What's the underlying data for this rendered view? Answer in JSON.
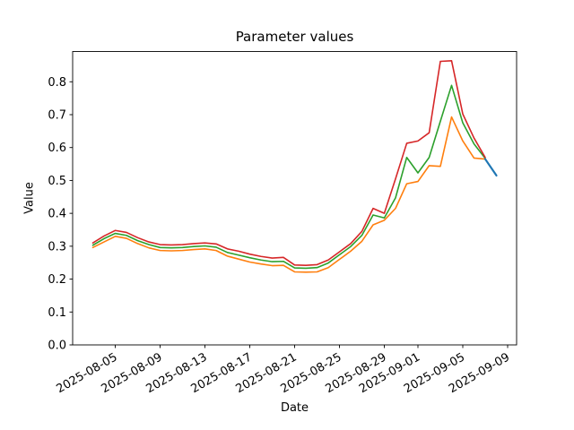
{
  "chart_data": {
    "type": "line",
    "title": "Parameter values",
    "xlabel": "Date",
    "ylabel": "Value",
    "grid": false,
    "legend": "none",
    "ylim": [
      0,
      0.892
    ],
    "y_ticks": [
      0.0,
      0.1,
      0.2,
      0.3,
      0.4,
      0.5,
      0.6,
      0.7,
      0.8
    ],
    "y_tick_labels": [
      "0.0",
      "0.1",
      "0.2",
      "0.3",
      "0.4",
      "0.5",
      "0.6",
      "0.7",
      "0.8"
    ],
    "x_tick_labels": [
      "2025-08-05",
      "2025-08-09",
      "2025-08-13",
      "2025-08-17",
      "2025-08-21",
      "2025-08-25",
      "2025-08-29",
      "2025-09-01",
      "2025-09-05",
      "2025-09-09"
    ],
    "x_tick_rotation_deg": 30,
    "x_range": {
      "start": "2025-08-03",
      "end": "2025-09-08",
      "margin_days": 1.8
    },
    "dates": [
      "2025-08-03",
      "2025-08-04",
      "2025-08-05",
      "2025-08-06",
      "2025-08-07",
      "2025-08-08",
      "2025-08-09",
      "2025-08-10",
      "2025-08-11",
      "2025-08-12",
      "2025-08-13",
      "2025-08-14",
      "2025-08-15",
      "2025-08-16",
      "2025-08-17",
      "2025-08-18",
      "2025-08-19",
      "2025-08-20",
      "2025-08-21",
      "2025-08-22",
      "2025-08-23",
      "2025-08-24",
      "2025-08-25",
      "2025-08-26",
      "2025-08-27",
      "2025-08-28",
      "2025-08-29",
      "2025-08-30",
      "2025-08-31",
      "2025-09-01",
      "2025-09-02",
      "2025-09-03",
      "2025-09-04",
      "2025-09-05",
      "2025-09-06",
      "2025-09-07"
    ],
    "series": [
      {
        "name": "orange",
        "color": "#ff7f0e",
        "width": 1.6,
        "values": [
          0.296,
          0.313,
          0.33,
          0.324,
          0.308,
          0.295,
          0.287,
          0.286,
          0.287,
          0.29,
          0.292,
          0.287,
          0.27,
          0.261,
          0.252,
          0.246,
          0.241,
          0.242,
          0.222,
          0.221,
          0.222,
          0.235,
          0.26,
          0.285,
          0.315,
          0.365,
          0.379,
          0.415,
          0.49,
          0.497,
          0.545,
          0.543,
          0.693,
          0.62,
          0.568,
          0.565
        ]
      },
      {
        "name": "green",
        "color": "#2ca02c",
        "width": 1.6,
        "values": [
          0.303,
          0.323,
          0.339,
          0.333,
          0.317,
          0.305,
          0.296,
          0.295,
          0.296,
          0.299,
          0.301,
          0.297,
          0.281,
          0.273,
          0.265,
          0.258,
          0.253,
          0.254,
          0.234,
          0.233,
          0.235,
          0.249,
          0.274,
          0.299,
          0.333,
          0.395,
          0.386,
          0.447,
          0.57,
          0.523,
          0.57,
          0.68,
          0.789,
          0.675,
          0.611,
          0.567
        ]
      },
      {
        "name": "red",
        "color": "#d62728",
        "width": 1.6,
        "values": [
          0.31,
          0.331,
          0.348,
          0.342,
          0.326,
          0.313,
          0.305,
          0.304,
          0.305,
          0.308,
          0.31,
          0.307,
          0.292,
          0.285,
          0.276,
          0.269,
          0.264,
          0.266,
          0.243,
          0.242,
          0.244,
          0.258,
          0.283,
          0.308,
          0.345,
          0.415,
          0.4,
          0.505,
          0.613,
          0.62,
          0.645,
          0.862,
          0.864,
          0.702,
          0.629,
          0.57
        ]
      },
      {
        "name": "blue",
        "color": "#1f77b4",
        "width": 2.2,
        "dates": [
          "2025-09-07",
          "2025-09-08"
        ],
        "values": [
          0.565,
          0.515
        ]
      }
    ]
  }
}
